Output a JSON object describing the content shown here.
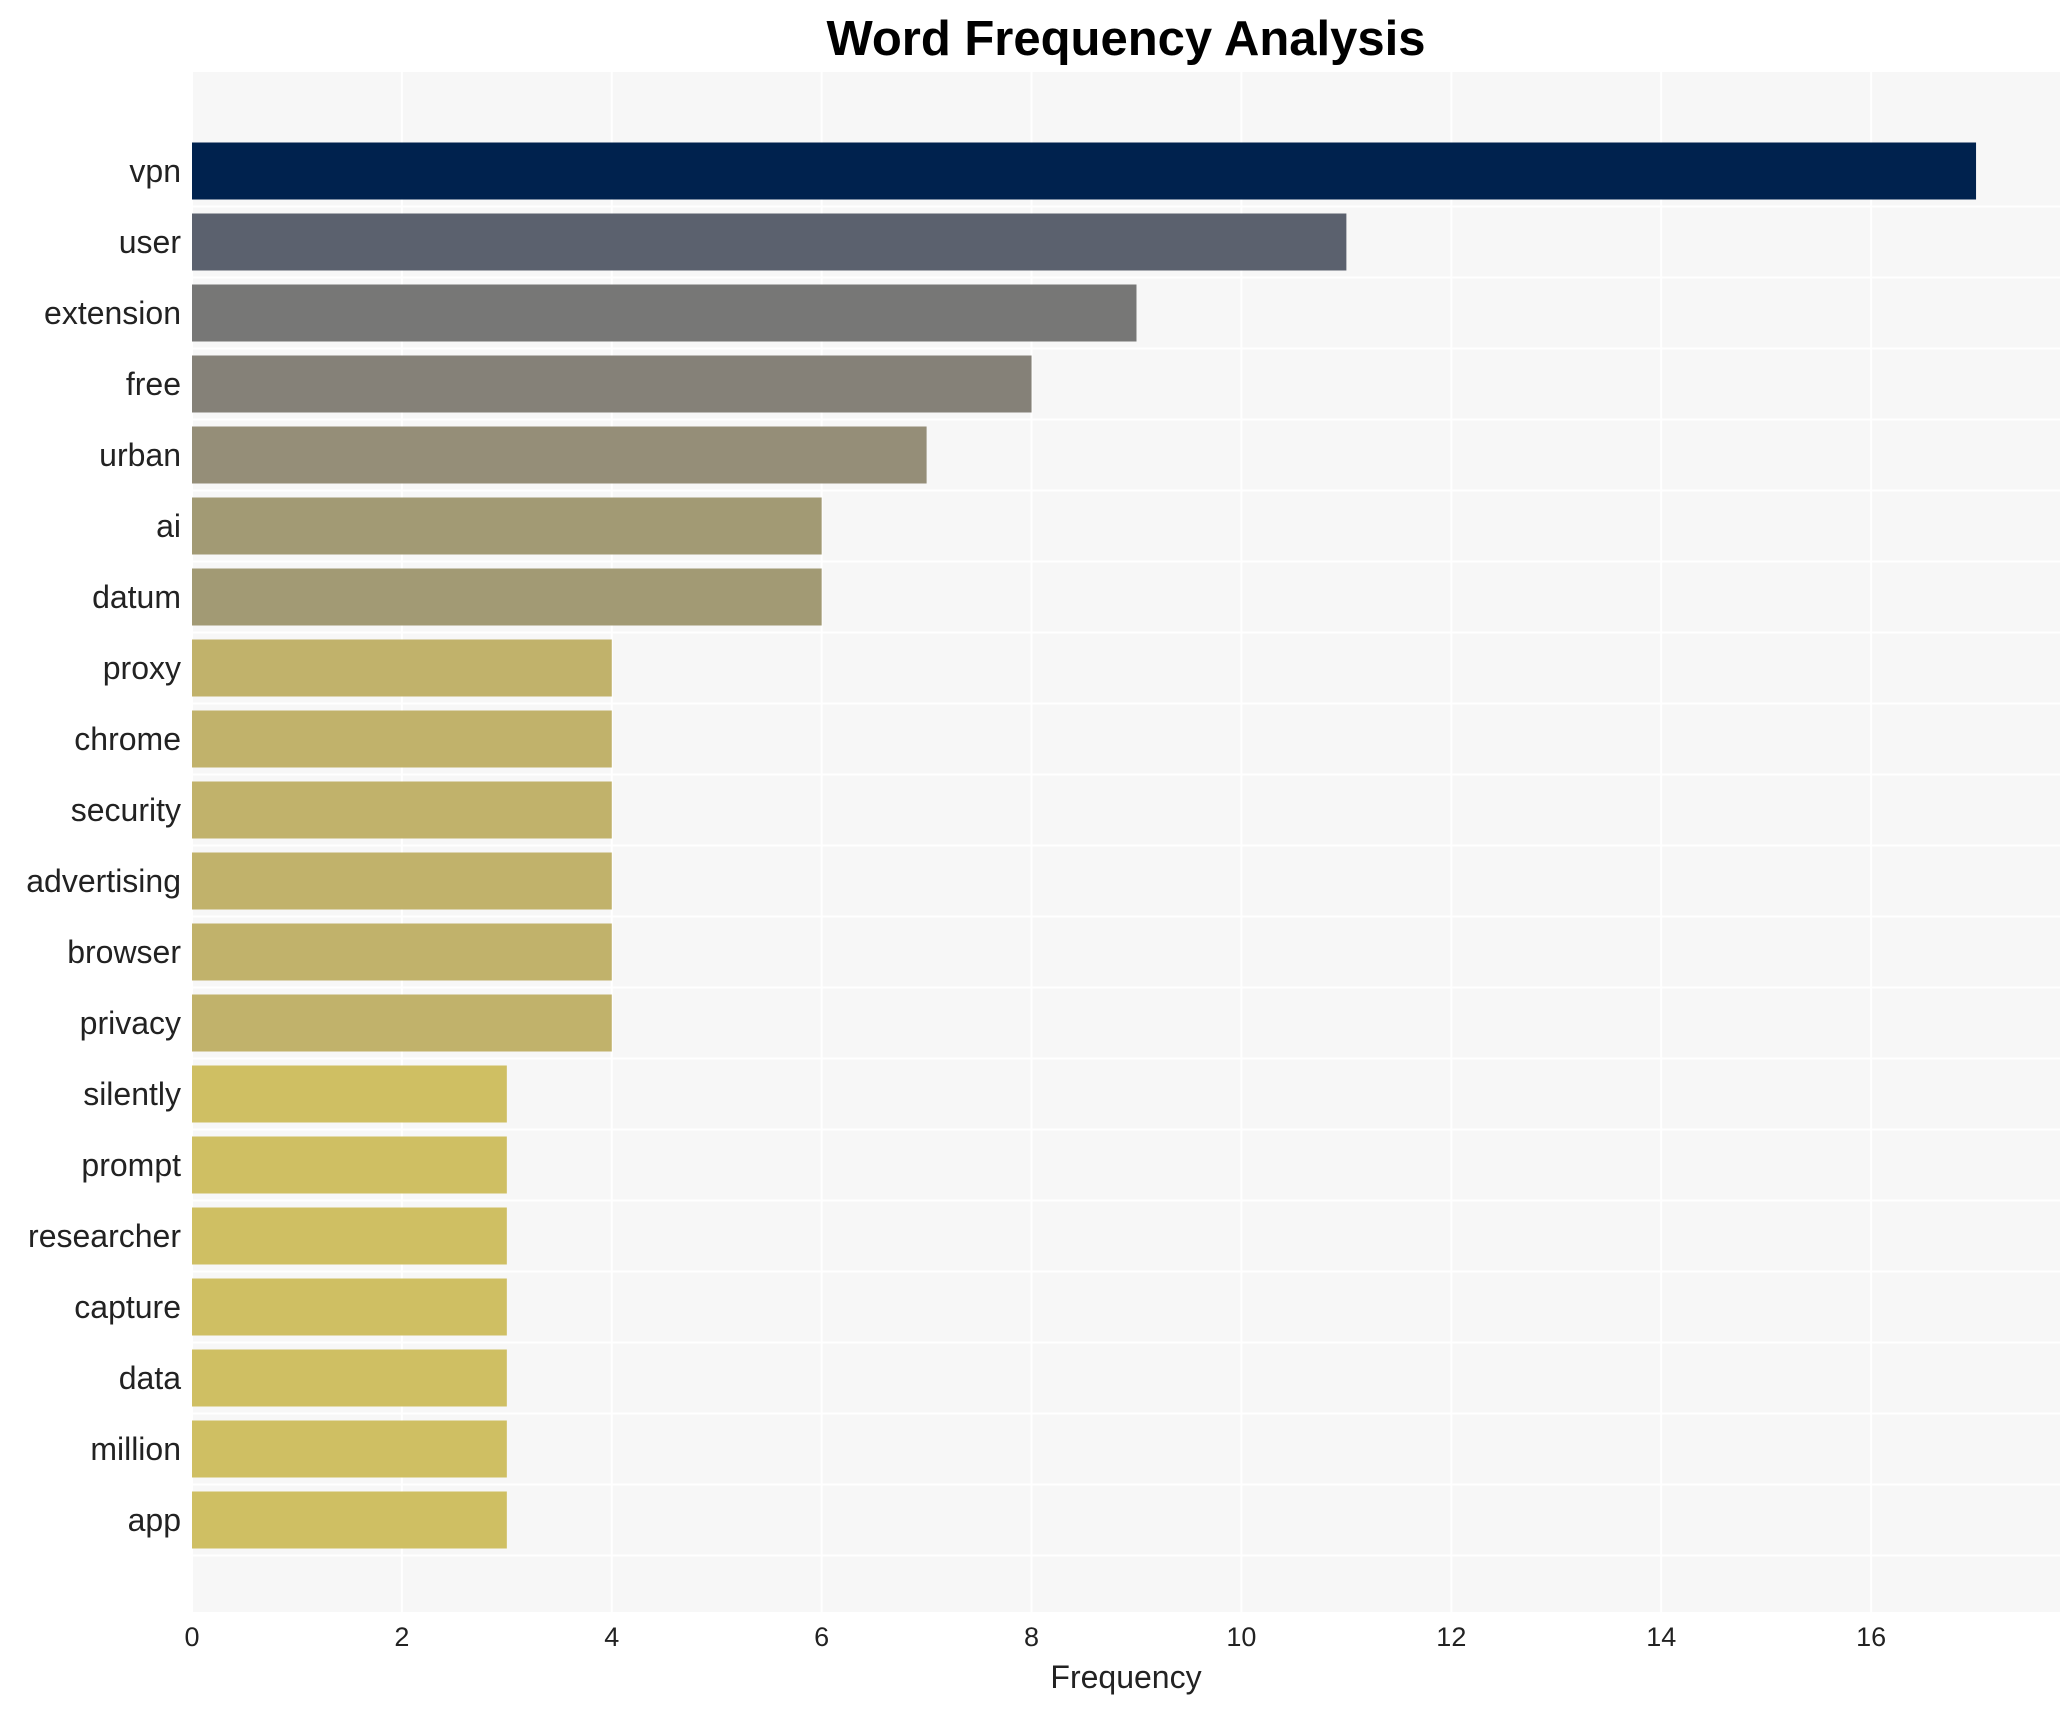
{
  "chart_data": {
    "type": "bar",
    "orientation": "horizontal",
    "title": "Word Frequency Analysis",
    "xlabel": "Frequency",
    "ylabel": "",
    "xlim": [
      0,
      17.8
    ],
    "xticks": [
      0,
      2,
      4,
      6,
      8,
      10,
      12,
      14,
      16
    ],
    "grid": true,
    "categories": [
      "vpn",
      "user",
      "extension",
      "free",
      "urban",
      "ai",
      "datum",
      "proxy",
      "chrome",
      "security",
      "advertising",
      "browser",
      "privacy",
      "silently",
      "prompt",
      "researcher",
      "capture",
      "data",
      "million",
      "app"
    ],
    "values": [
      17,
      11,
      9,
      8,
      7,
      6,
      6,
      4,
      4,
      4,
      4,
      4,
      4,
      3,
      3,
      3,
      3,
      3,
      3,
      3
    ],
    "colors": [
      "#00224e",
      "#5b616e",
      "#777776",
      "#858178",
      "#958e78",
      "#a29a74",
      "#a29a74",
      "#c1b26b",
      "#c1b26b",
      "#c1b26b",
      "#c1b26b",
      "#c1b26b",
      "#c1b26b",
      "#cfbf63",
      "#cfbf63",
      "#cfbf63",
      "#cfbf63",
      "#cfbf63",
      "#cfbf63",
      "#cfbf63"
    ],
    "plot_background": "#f7f7f7",
    "grid_color": "#ffffff"
  }
}
